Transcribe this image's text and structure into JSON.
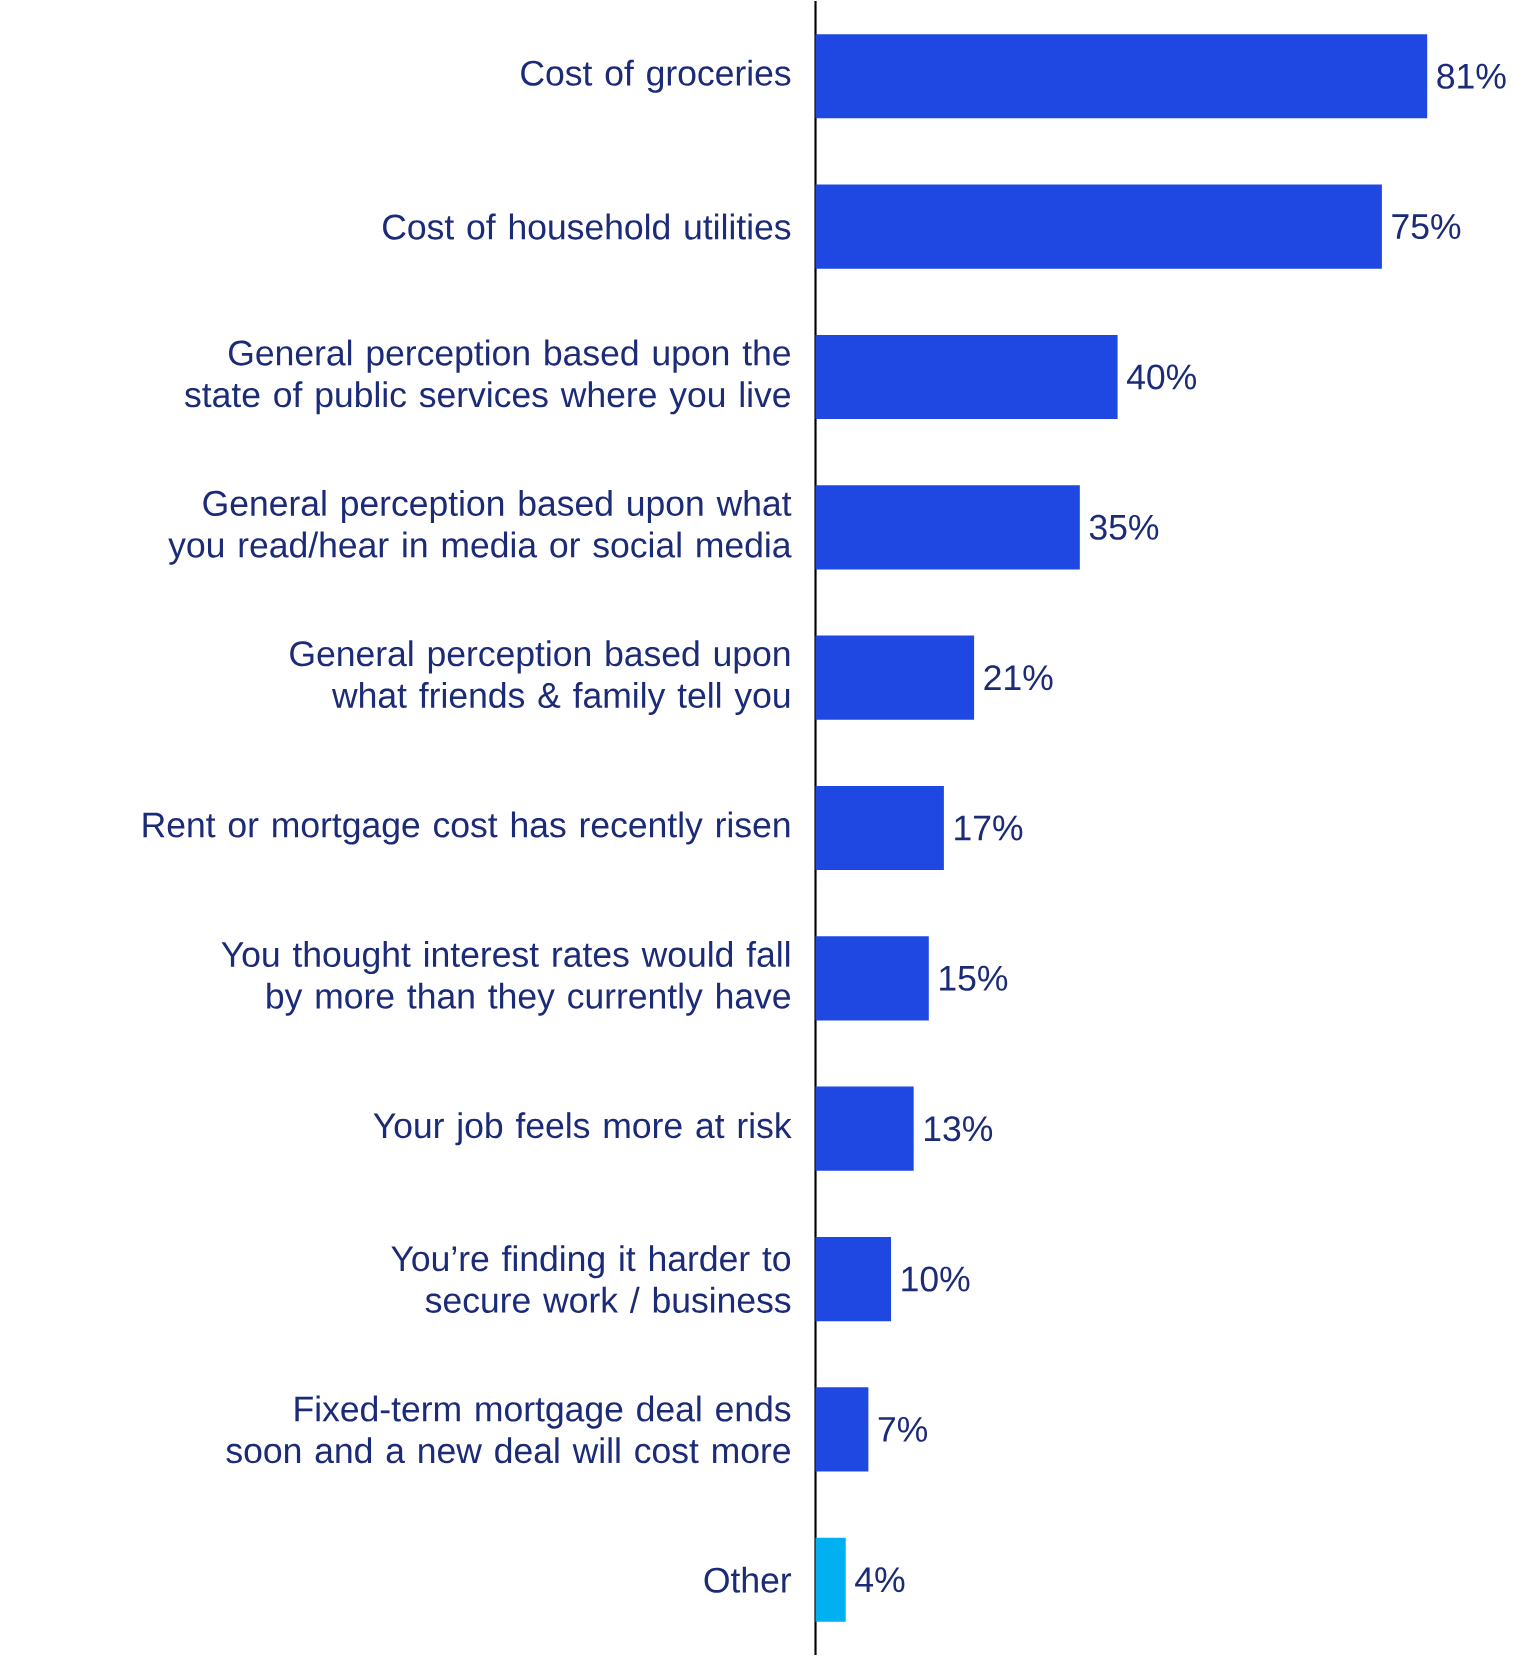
{
  "chart_data": {
    "type": "bar",
    "orientation": "horizontal",
    "categories": [
      "Cost of groceries",
      "Cost of household utilities",
      "General perception based upon the state of public services where you live",
      "General perception based upon what you read/hear in media or social media",
      "General perception based upon what friends & family tell you",
      "Rent or mortgage cost has recently risen",
      "You thought interest rates would fall by more than they currently have",
      "Your job feels more at risk",
      "You’re finding it harder to secure work / business",
      "Fixed-term mortgage deal ends soon and a new deal will cost more",
      "Other"
    ],
    "values": [
      81,
      75,
      40,
      35,
      21,
      17,
      15,
      13,
      10,
      7,
      4
    ],
    "value_labels": [
      "81%",
      "75%",
      "40%",
      "35%",
      "21%",
      "17%",
      "15%",
      "13%",
      "10%",
      "7%",
      "4%"
    ],
    "colors": [
      "#1f48e3",
      "#1f48e3",
      "#1f48e3",
      "#1f48e3",
      "#1f48e3",
      "#1f48e3",
      "#1f48e3",
      "#1f48e3",
      "#1f48e3",
      "#1f48e3",
      "#00b0f0"
    ]
  }
}
